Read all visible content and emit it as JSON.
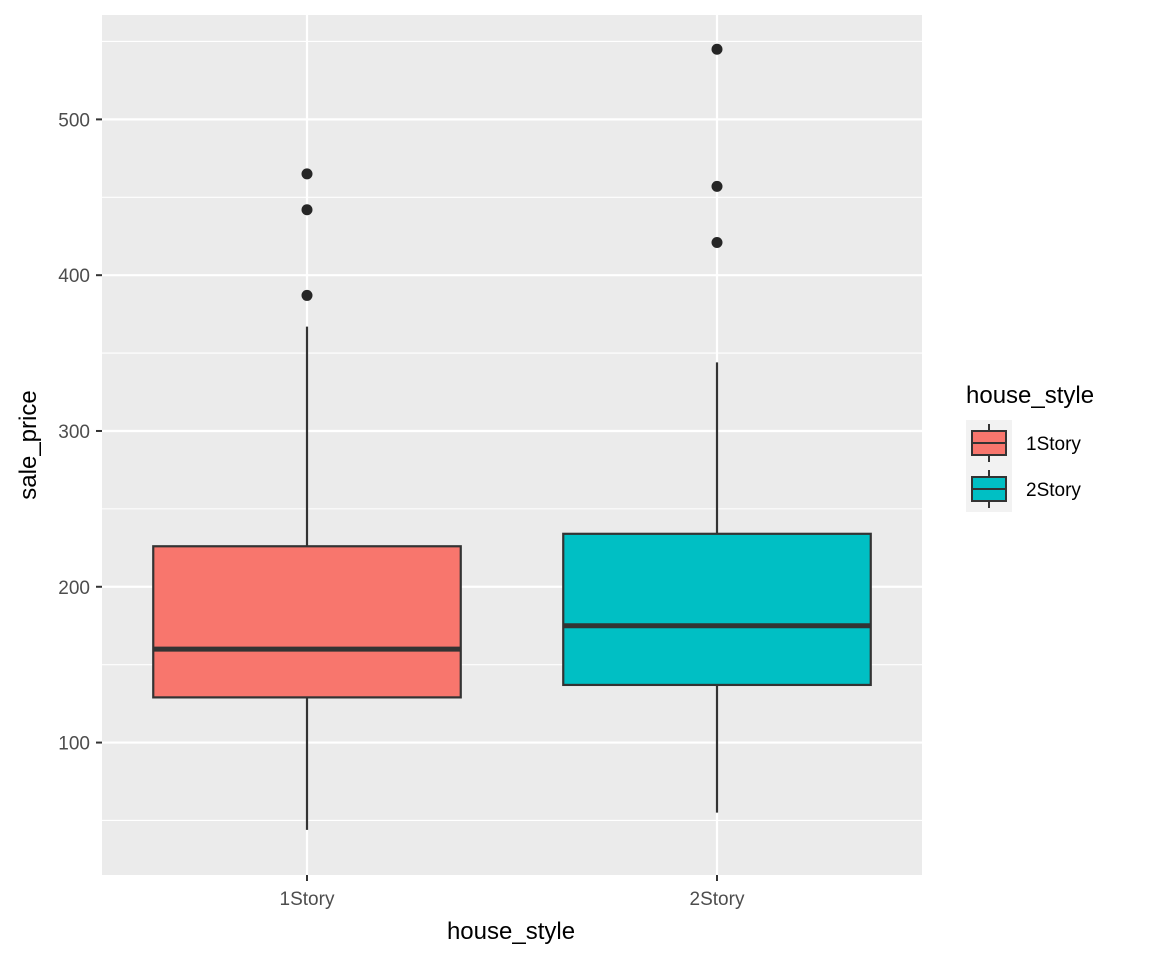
{
  "chart_data": {
    "type": "boxplot",
    "title": "",
    "xlabel": "house_style",
    "ylabel": "sale_price",
    "ylim": [
      15,
      567
    ],
    "y_ticks": [
      100,
      200,
      300,
      400,
      500
    ],
    "y_tick_labels": [
      "100",
      "200",
      "300",
      "400",
      "500"
    ],
    "grid": true,
    "legend": {
      "title": "house_style",
      "placement": "right",
      "entries": [
        "1Story",
        "2Story"
      ]
    },
    "categories": [
      "1Story",
      "2Story"
    ],
    "series": [
      {
        "name": "1Story",
        "color": "#F8766D",
        "whisker_low": 44,
        "q1": 129,
        "median": 160,
        "q3": 226,
        "whisker_high": 367,
        "outliers": [
          387,
          442,
          465
        ]
      },
      {
        "name": "2Story",
        "color": "#00BFC4",
        "whisker_low": 55,
        "q1": 137,
        "median": 175,
        "q3": 234,
        "whisker_high": 344,
        "outliers": [
          421,
          457,
          545
        ]
      }
    ],
    "colors": {
      "panel_background": "#EBEBEB",
      "grid_major": "#FFFFFF",
      "grid_minor": "#F5F5F5",
      "box_outline": "#333333",
      "outlier": "#262626"
    }
  }
}
